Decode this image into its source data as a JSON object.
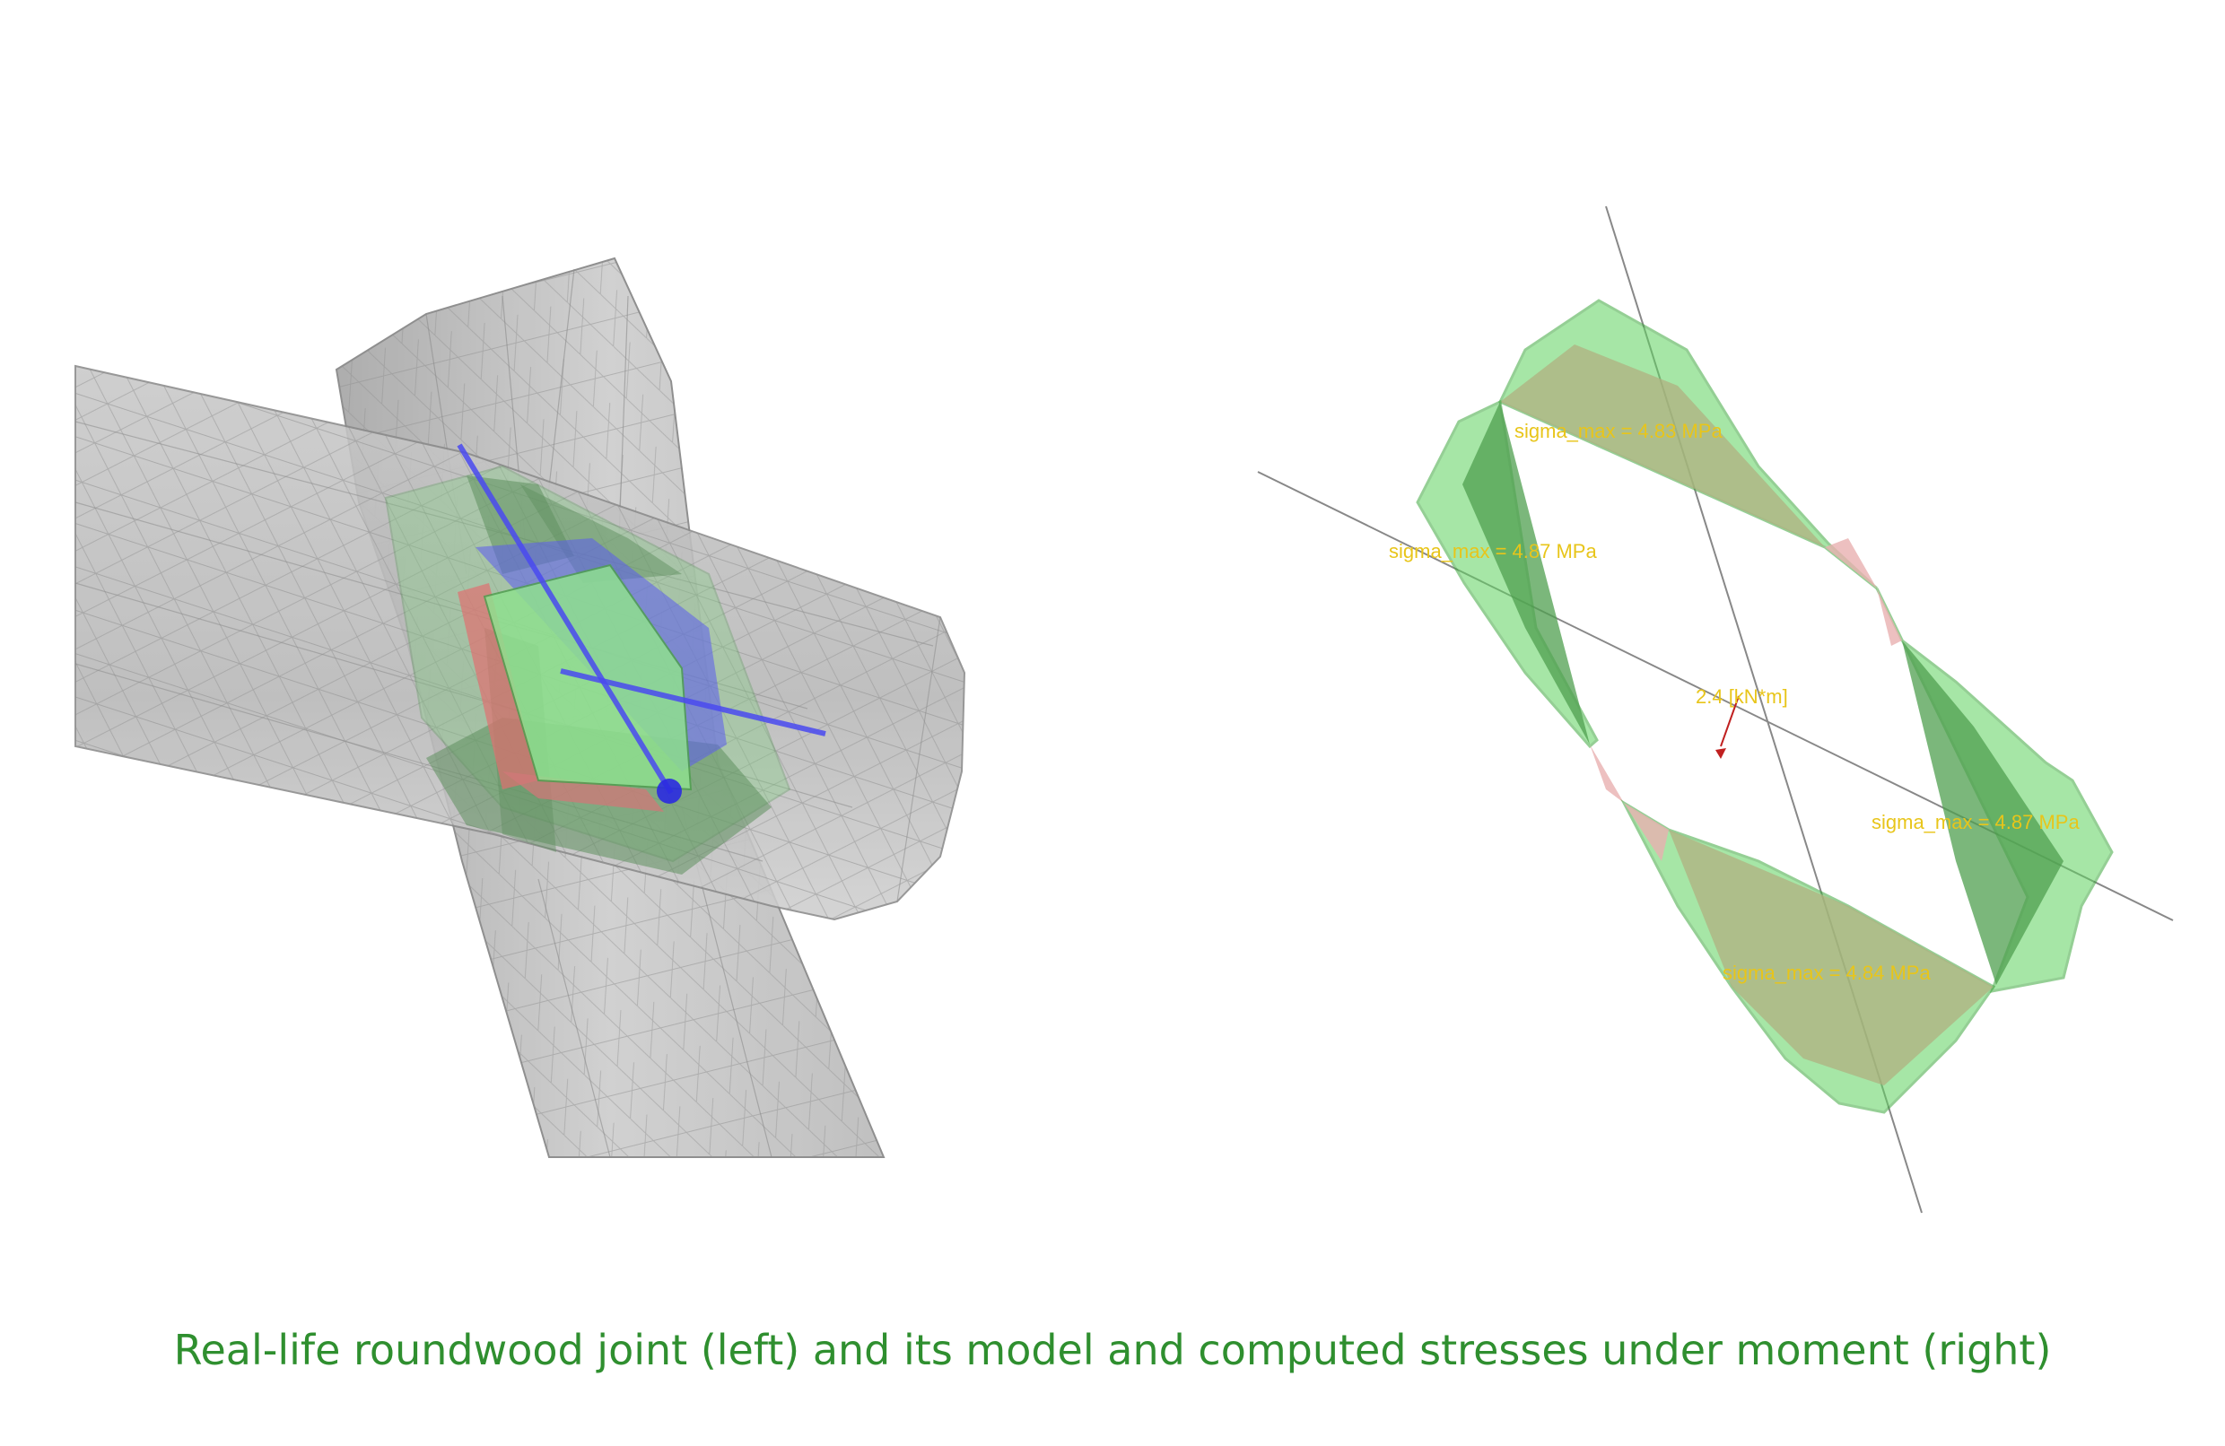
{
  "caption": "Real-life roundwood joint (left) and its model and computed stresses under moment (right)",
  "labels": {
    "top": "sigma_max = 4.83 MPa",
    "left": "sigma_max = 4.87 MPa",
    "right": "sigma_max = 4.87 MPa",
    "bottom": "sigma_max = 4.84 MPa",
    "moment": "2.4 [kN*m]"
  },
  "colors": {
    "caption": "#2f8f2f",
    "label": "#e8c51a",
    "stress_fill": "#5fd35f",
    "wood": "#c8c8c8",
    "axis": "#3a3aff",
    "compression": "#e08080"
  }
}
